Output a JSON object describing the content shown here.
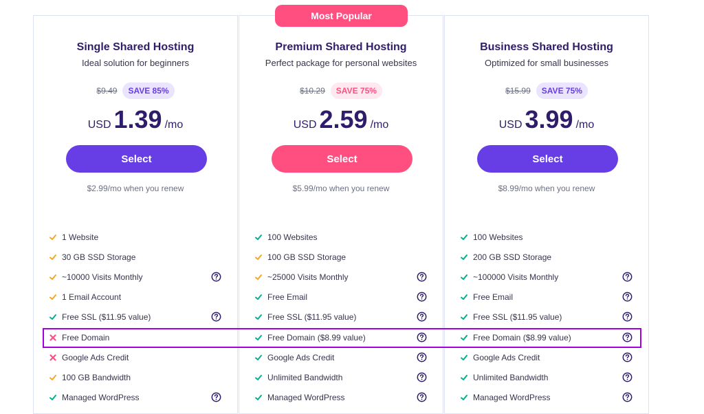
{
  "plans": [
    {
      "title": "Single Shared Hosting",
      "subtitle": "Ideal solution for beginners",
      "old_price": "$9.49",
      "save": "SAVE 85%",
      "currency": "USD",
      "price": "1.39",
      "period": "/mo",
      "button": "Select",
      "renew": "$2.99/mo when you renew",
      "accent": "#673de6",
      "badge_bg": "#ebe4ff",
      "features": [
        {
          "text": "1 Website",
          "icon": "check",
          "color": "#f5a623",
          "help": false
        },
        {
          "text": "30 GB SSD Storage",
          "icon": "check",
          "color": "#f5a623",
          "help": false
        },
        {
          "text": "~10000 Visits Monthly",
          "icon": "check",
          "color": "#f5a623",
          "help": true
        },
        {
          "text": "1 Email Account",
          "icon": "check",
          "color": "#f5a623",
          "help": false
        },
        {
          "text": "Free SSL ($11.95 value)",
          "icon": "check",
          "color": "#00b090",
          "help": true
        },
        {
          "text": "Free Domain",
          "icon": "cross",
          "color": "#fc5185",
          "help": false
        },
        {
          "text": "Google Ads Credit",
          "icon": "cross",
          "color": "#fc5185",
          "help": false
        },
        {
          "text": "100 GB Bandwidth",
          "icon": "check",
          "color": "#f5a623",
          "help": false
        },
        {
          "text": "Managed WordPress",
          "icon": "check",
          "color": "#00b090",
          "help": true
        }
      ]
    },
    {
      "title": "Premium Shared Hosting",
      "subtitle": "Perfect package for personal websites",
      "badge": "Most Popular",
      "old_price": "$10.29",
      "save": "SAVE 75%",
      "currency": "USD",
      "price": "2.59",
      "period": "/mo",
      "button": "Select",
      "renew": "$5.99/mo when you renew",
      "accent": "#ff4f80",
      "badge_bg": "#ffe8ef",
      "features": [
        {
          "text": "100 Websites",
          "icon": "check",
          "color": "#00b090",
          "help": false
        },
        {
          "text": "100 GB SSD Storage",
          "icon": "check",
          "color": "#f5a623",
          "help": false
        },
        {
          "text": "~25000 Visits Monthly",
          "icon": "check",
          "color": "#f5a623",
          "help": true
        },
        {
          "text": "Free Email",
          "icon": "check",
          "color": "#00b090",
          "help": true
        },
        {
          "text": "Free SSL ($11.95 value)",
          "icon": "check",
          "color": "#00b090",
          "help": true
        },
        {
          "text": "Free Domain ($8.99 value)",
          "icon": "check",
          "color": "#00b090",
          "help": true
        },
        {
          "text": "Google Ads Credit",
          "icon": "check",
          "color": "#00b090",
          "help": true
        },
        {
          "text": "Unlimited Bandwidth",
          "icon": "check",
          "color": "#00b090",
          "help": true
        },
        {
          "text": "Managed WordPress",
          "icon": "check",
          "color": "#00b090",
          "help": true
        }
      ]
    },
    {
      "title": "Business Shared Hosting",
      "subtitle": "Optimized for small businesses",
      "old_price": "$15.99",
      "save": "SAVE 75%",
      "currency": "USD",
      "price": "3.99",
      "period": "/mo",
      "button": "Select",
      "renew": "$8.99/mo when you renew",
      "accent": "#673de6",
      "badge_bg": "#ebe4ff",
      "features": [
        {
          "text": "100 Websites",
          "icon": "check",
          "color": "#00b090",
          "help": false
        },
        {
          "text": "200 GB SSD Storage",
          "icon": "check",
          "color": "#00b090",
          "help": false
        },
        {
          "text": "~100000 Visits Monthly",
          "icon": "check",
          "color": "#00b090",
          "help": true
        },
        {
          "text": "Free Email",
          "icon": "check",
          "color": "#00b090",
          "help": true
        },
        {
          "text": "Free SSL ($11.95 value)",
          "icon": "check",
          "color": "#00b090",
          "help": true
        },
        {
          "text": "Free Domain ($8.99 value)",
          "icon": "check",
          "color": "#00b090",
          "help": true
        },
        {
          "text": "Google Ads Credit",
          "icon": "check",
          "color": "#00b090",
          "help": true
        },
        {
          "text": "Unlimited Bandwidth",
          "icon": "check",
          "color": "#00b090",
          "help": true
        },
        {
          "text": "Managed WordPress",
          "icon": "check",
          "color": "#00b090",
          "help": true
        }
      ]
    }
  ]
}
